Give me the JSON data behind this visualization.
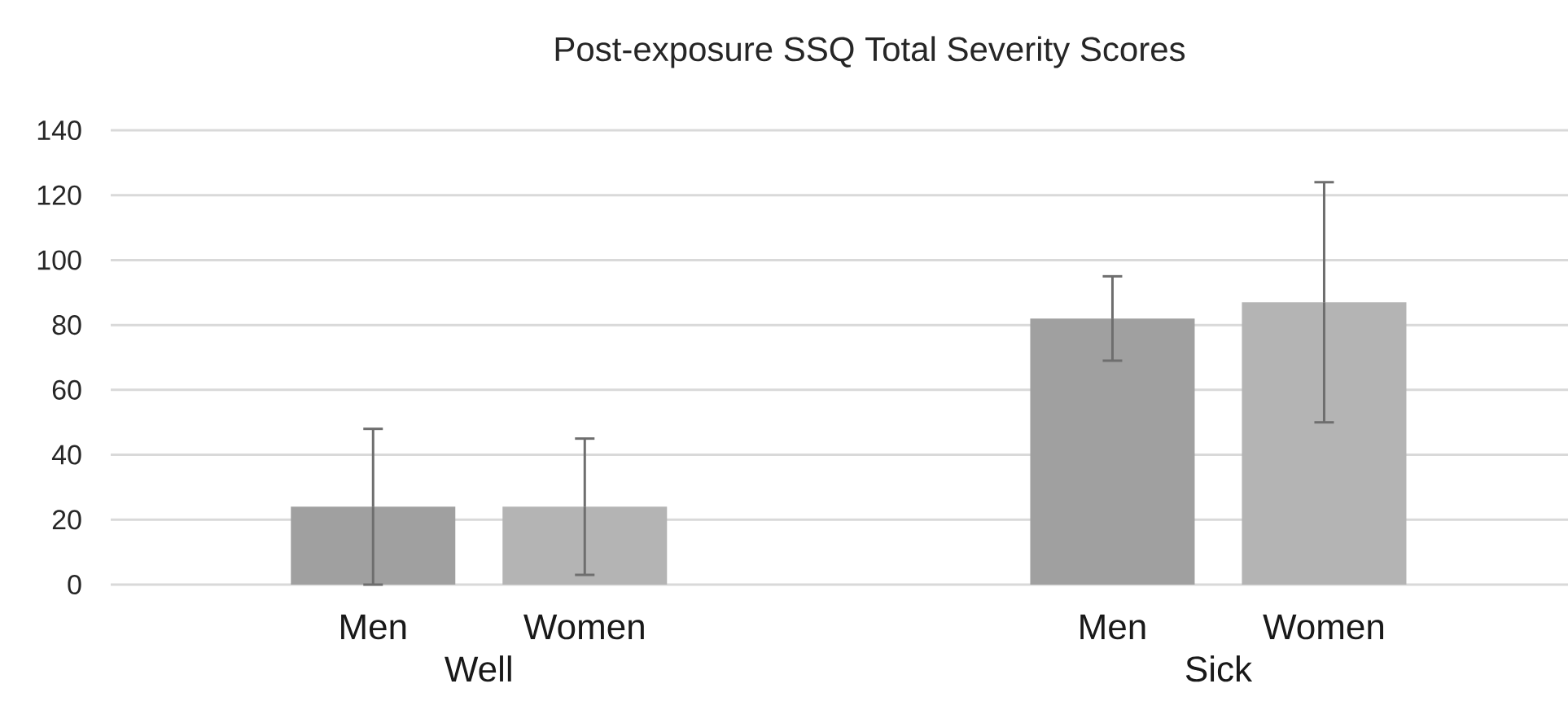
{
  "chart_data": {
    "type": "bar",
    "title": "Post-exposure SSQ Total Severity Scores",
    "categories": [
      "Well",
      "Sick"
    ],
    "series": [
      {
        "name": "Men",
        "color": "#a0a0a0",
        "values": [
          24,
          82
        ],
        "errors": [
          24,
          13
        ]
      },
      {
        "name": "Women",
        "color": "#b4b4b4",
        "values": [
          24,
          87
        ],
        "errors": [
          21,
          37
        ]
      }
    ],
    "ylim": [
      0,
      140
    ],
    "yticks": [
      0,
      20,
      40,
      60,
      80,
      100,
      120,
      140
    ],
    "grid": "y"
  }
}
